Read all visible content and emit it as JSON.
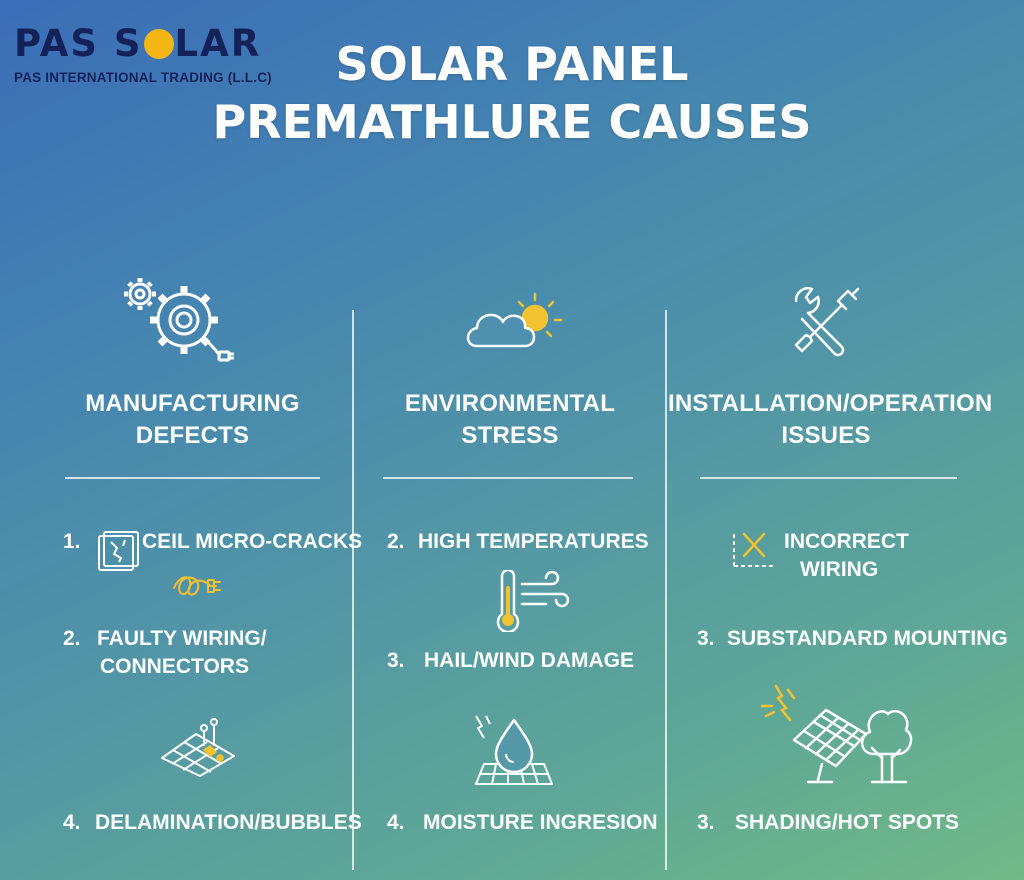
{
  "logo": {
    "name_part1": "PAS S",
    "name_part2": "L",
    "name_part3": "AR",
    "subtitle": "PAS INTERNATIONAL TRADING (L.L.C)"
  },
  "title": {
    "line1": "SOLAR PANEL",
    "line2": "PREMATHLURE CAUSES"
  },
  "columns": [
    {
      "heading_line1": "MANUFACTURING",
      "heading_line2": "DEFECTS",
      "icon": "gears-plug-icon",
      "items": [
        {
          "num": "1.",
          "text": "CEIL MICRO-CRACKS",
          "icon": "cracked-cell-icon"
        },
        {
          "num": "2.",
          "text_line1": "FAULTY WIRING/",
          "text_line2": "CONNECTORS",
          "icon": "tangled-wire-icon"
        },
        {
          "num": "4.",
          "text": "DELAMINATION/BUBBLES",
          "icon": "panel-bubbles-icon"
        }
      ]
    },
    {
      "heading_line1": "ENVIRONMENTAL",
      "heading_line2": "STRESS",
      "icon": "cloud-sun-icon",
      "items": [
        {
          "num": "2.",
          "text": "HIGH TEMPERATURES",
          "icon": "thermometer-wind-icon"
        },
        {
          "num": "3.",
          "text": "HAIL/WIND DAMAGE",
          "icon": "drop-grid-icon"
        },
        {
          "num": "4.",
          "text": "MOISTURE INGRESION"
        }
      ]
    },
    {
      "heading_line1": "INSTALLATION/OPERATION",
      "heading_line2": "ISSUES",
      "icon": "wrench-screwdriver-icon",
      "items": [
        {
          "text_line1": "INCORRECT",
          "text_line2": "WIRING",
          "icon": "wiring-cross-icon"
        },
        {
          "num": "3.",
          "text": "SUBSTANDARD MOUNTING",
          "icon": "panel-tree-icon"
        },
        {
          "num": "3.",
          "text": "SHADING/HOT SPOTS"
        }
      ]
    }
  ],
  "colors": {
    "accent": "#f6b614",
    "logo_text": "#15225a",
    "icon_stroke": "#ffffff",
    "icon_accent": "#f2c230"
  }
}
